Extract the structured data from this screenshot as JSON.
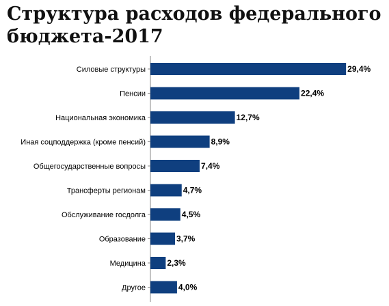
{
  "chart_data": {
    "type": "bar",
    "orientation": "horizontal",
    "title": "Структура расходов федерального бюджета-2017",
    "categories": [
      "Силовые структуры",
      "Пенсии",
      "Национальная экономика",
      "Иная соцподдержка (кроме пенсий)",
      "Общегосударственные вопросы",
      "Трансферты регионам",
      "Обслуживание госдолга",
      "Образование",
      "Медицина",
      "Другое"
    ],
    "values": [
      29.4,
      22.4,
      12.7,
      8.9,
      7.4,
      4.7,
      4.5,
      3.7,
      2.3,
      4.0
    ],
    "value_labels": [
      "29,4%",
      "22,4%",
      "12,7%",
      "8,9%",
      "7,4%",
      "4,7%",
      "4,5%",
      "3,7%",
      "2,3%",
      "4,0%"
    ],
    "xlim": [
      0,
      30
    ],
    "grid": false,
    "legend": "none",
    "bar_color": "#0f3f7f"
  }
}
